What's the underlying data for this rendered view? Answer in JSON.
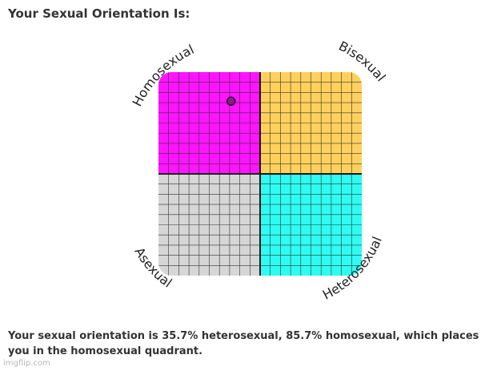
{
  "page": {
    "title": "Your Sexual Orientation Is:",
    "result_text": "Your sexual orientation is 35.7% heterosexual, 85.7% homosexual, which places you in the homosexual quadrant.",
    "watermark": "imgflip.com"
  },
  "chart_data": {
    "type": "scatter",
    "quadrants": [
      {
        "label": "Homosexual",
        "position": "top-left",
        "color": "#ff14ff"
      },
      {
        "label": "Bisexual",
        "position": "top-right",
        "color": "#ffd15c"
      },
      {
        "label": "Asexual",
        "position": "bottom-left",
        "color": "#d6d6d6"
      },
      {
        "label": "Heterosexual",
        "position": "bottom-right",
        "color": "#2efcf2"
      }
    ],
    "grid": true,
    "point": {
      "heterosexual_pct": 35.7,
      "homosexual_pct": 85.7,
      "color": "#8b1a8b"
    }
  }
}
